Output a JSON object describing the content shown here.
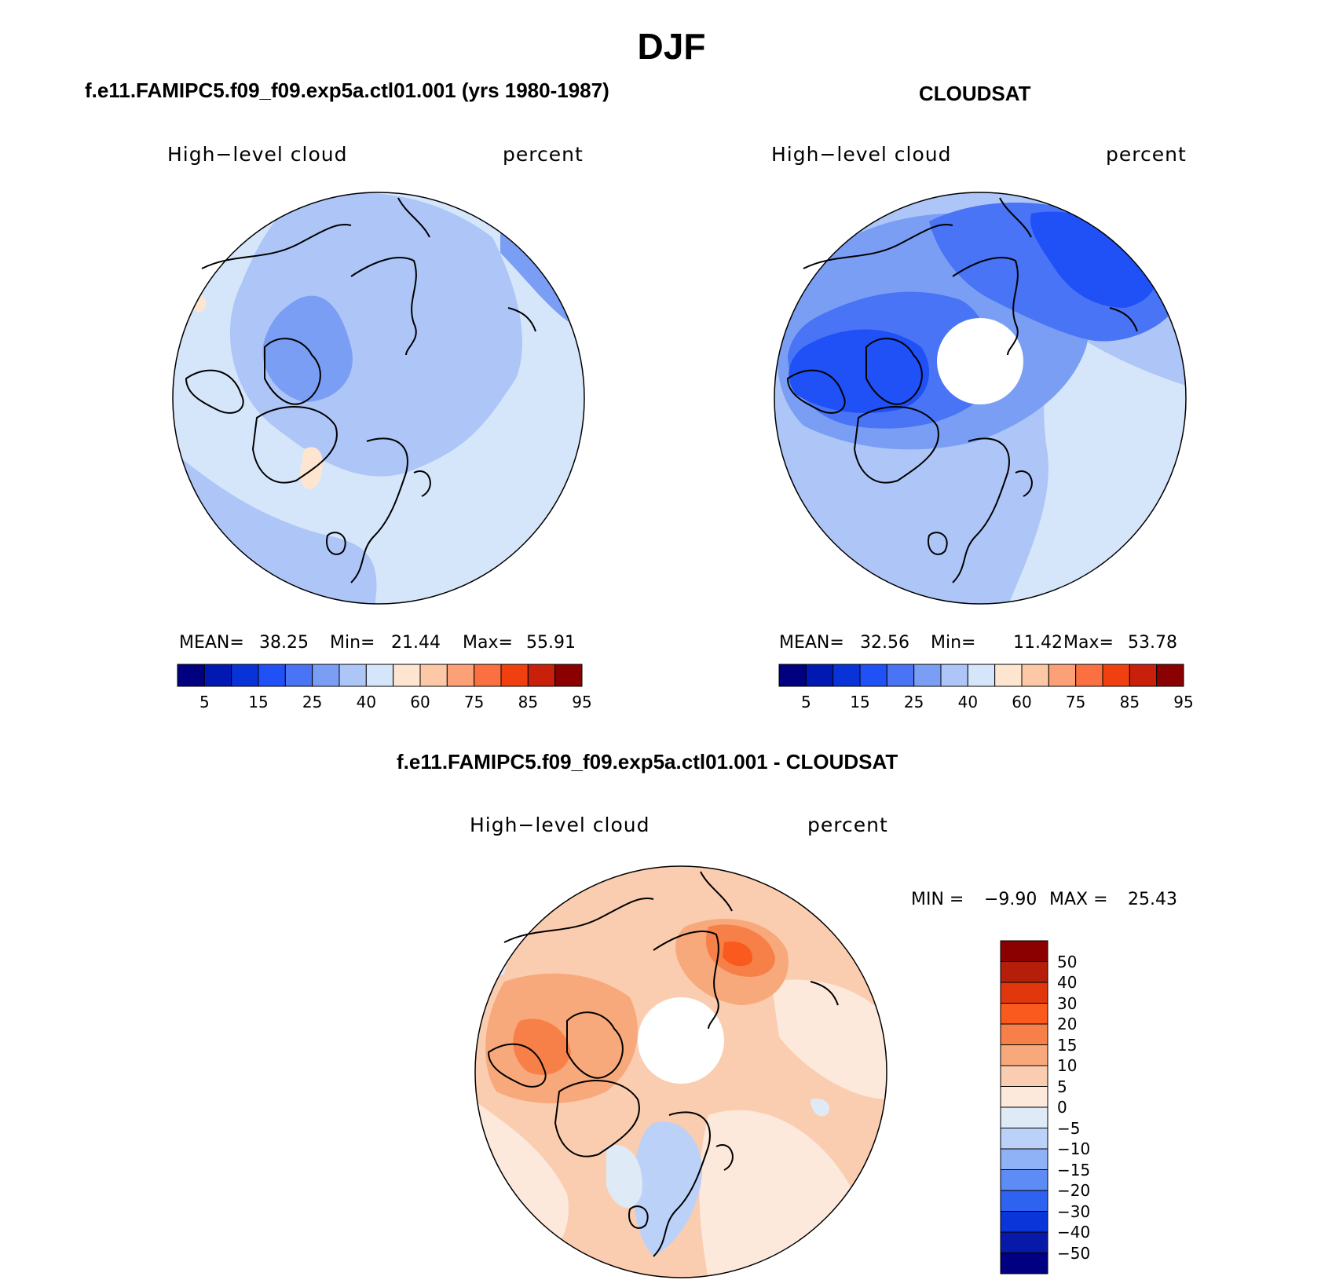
{
  "figure": {
    "season": "DJF",
    "panels": [
      {
        "title": "f.e11.FAMIPC5.f09_f09.exp5a.ctl01.001 (yrs 1980-1987)",
        "variable": "High−level cloud",
        "units": "percent",
        "mean_label": "MEAN=",
        "mean": "38.25",
        "min_label": "Min=",
        "min": "21.44",
        "max_label": "Max=",
        "max": "55.91"
      },
      {
        "title": "CLOUDSAT",
        "variable": "High−level cloud",
        "units": "percent",
        "mean_label": "MEAN=",
        "mean": "32.56",
        "min_label": "Min=",
        "min": "11.42",
        "max_label": "Max=",
        "max": "53.78"
      }
    ],
    "diff": {
      "title": "f.e11.FAMIPC5.f09_f09.exp5a.ctl01.001 - CLOUDSAT",
      "variable": "High−level cloud",
      "units": "percent",
      "min_label": "MIN =",
      "min": "−9.90",
      "max_label": "MAX =",
      "max": "25.43"
    }
  },
  "colorbars": {
    "abs_colors": [
      "#000080",
      "#0019b3",
      "#0833d9",
      "#1f51f7",
      "#4874f5",
      "#7b9ef5",
      "#adc6f7",
      "#d6e6fa",
      "#fde5d0",
      "#fcc8a5",
      "#fca077",
      "#fa7040",
      "#f04010",
      "#c8200a",
      "#8b0000"
    ],
    "abs_ticks": [
      "5",
      "15",
      "25",
      "40",
      "60",
      "75",
      "85",
      "95"
    ],
    "diff_colors_top_to_bottom": [
      "#8b0000",
      "#b51e0a",
      "#e0380c",
      "#fa5a1e",
      "#f78048",
      "#f8a97c",
      "#fbcdb0",
      "#fce9dc",
      "#dfeaf7",
      "#bcd1f7",
      "#8fb1f6",
      "#5e8cf5",
      "#2e62f0",
      "#0a35d8",
      "#0818a8",
      "#000080"
    ],
    "diff_ticks": [
      "50",
      "40",
      "30",
      "20",
      "15",
      "10",
      "5",
      "0",
      "−5",
      "−10",
      "−15",
      "−20",
      "−30",
      "−40",
      "−50"
    ]
  },
  "chart_data": [
    {
      "type": "heatmap",
      "projection": "north-polar-stereographic",
      "title": "f.e11.FAMIPC5.f09_f09.exp5a.ctl01.001 (yrs 1980-1987)",
      "variable": "High-level cloud",
      "units": "percent",
      "mean": 38.25,
      "min": 21.44,
      "max": 55.91,
      "levels": [
        5,
        10,
        15,
        20,
        25,
        30,
        40,
        50,
        60,
        70,
        75,
        80,
        85,
        90,
        95
      ]
    },
    {
      "type": "heatmap",
      "projection": "north-polar-stereographic",
      "title": "CLOUDSAT",
      "variable": "High-level cloud",
      "units": "percent",
      "mean": 32.56,
      "min": 11.42,
      "max": 53.78,
      "levels": [
        5,
        10,
        15,
        20,
        25,
        30,
        40,
        50,
        60,
        70,
        75,
        80,
        85,
        90,
        95
      ]
    },
    {
      "type": "heatmap",
      "projection": "north-polar-stereographic",
      "title": "f.e11.FAMIPC5.f09_f09.exp5a.ctl01.001 - CLOUDSAT",
      "variable": "High-level cloud",
      "units": "percent",
      "min": -9.9,
      "max": 25.43,
      "levels": [
        -50,
        -40,
        -30,
        -20,
        -15,
        -10,
        -5,
        0,
        5,
        10,
        15,
        20,
        30,
        40,
        50
      ]
    }
  ]
}
